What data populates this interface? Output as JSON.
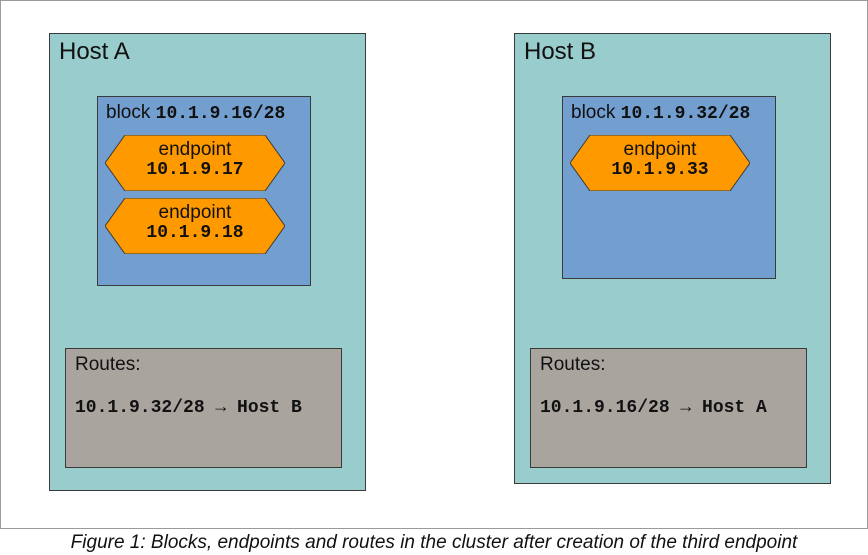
{
  "colors": {
    "host_bg": "#99cccc",
    "block_bg": "#729fcf",
    "endpoint_bg": "#ff9900",
    "routes_bg": "#aaa49f"
  },
  "hostA": {
    "title": "Host A",
    "block": {
      "word": "block",
      "cidr": "10.1.9.16/28",
      "endpoints": [
        {
          "label": "endpoint",
          "ip": "10.1.9.17"
        },
        {
          "label": "endpoint",
          "ip": "10.1.9.18"
        }
      ]
    },
    "routes": {
      "title": "Routes:",
      "entry": "10.1.9.32/28 → Host B"
    }
  },
  "hostB": {
    "title": "Host B",
    "block": {
      "word": "block",
      "cidr": "10.1.9.32/28",
      "endpoints": [
        {
          "label": "endpoint",
          "ip": "10.1.9.33"
        }
      ]
    },
    "routes": {
      "title": "Routes:",
      "entry": "10.1.9.16/28 → Host A"
    }
  },
  "caption": "Figure 1: Blocks, endpoints and routes in the cluster after creation of the third endpoint"
}
